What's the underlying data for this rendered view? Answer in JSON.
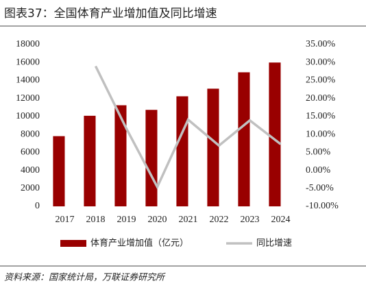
{
  "chart_data": {
    "type": "bar-line",
    "title": "图表37：全国体育产业增加值及同比增速",
    "source": "资料来源：国家统计局，万联证券研究所",
    "categories": [
      "2017",
      "2018",
      "2019",
      "2020",
      "2021",
      "2022",
      "2023",
      "2024"
    ],
    "series": [
      {
        "name": "体育产业增加值（亿元）",
        "type": "bar",
        "color": "#990000",
        "values": [
          7811,
          10078,
          11248,
          10735,
          12245,
          13092,
          14915,
          16000
        ]
      },
      {
        "name": "同比增速",
        "type": "line",
        "axis": "y2",
        "color": "#c0c0c0",
        "values": [
          null,
          29.0,
          11.6,
          -4.6,
          14.1,
          6.9,
          13.9,
          7.3
        ]
      }
    ],
    "ylim": [
      0,
      18000
    ],
    "yticks": [
      0,
      2000,
      4000,
      6000,
      8000,
      10000,
      12000,
      14000,
      16000,
      18000
    ],
    "y2lim": [
      -10,
      35
    ],
    "y2ticks": [
      {
        "value": -10,
        "label": "-10.00%"
      },
      {
        "value": -5,
        "label": "-5.00%"
      },
      {
        "value": 0,
        "label": "0.00%"
      },
      {
        "value": 5,
        "label": "5.00%"
      },
      {
        "value": 10,
        "label": "10.00%"
      },
      {
        "value": 15,
        "label": "15.00%"
      },
      {
        "value": 20,
        "label": "20.00%"
      },
      {
        "value": 25,
        "label": "25.00%"
      },
      {
        "value": 30,
        "label": "30.00%"
      },
      {
        "value": 35,
        "label": "35.00%"
      }
    ]
  }
}
